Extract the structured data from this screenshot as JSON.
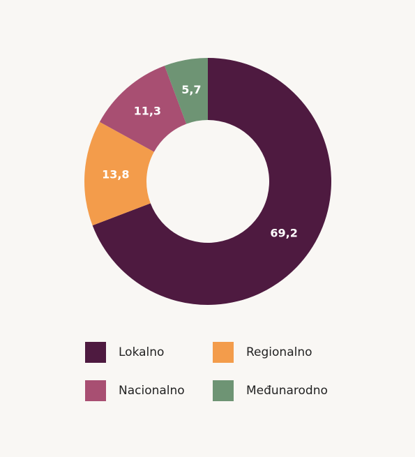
{
  "chart_data": {
    "type": "donut",
    "categories": [
      "Lokalno",
      "Regionalno",
      "Nacionalno",
      "Međunarodno"
    ],
    "values": [
      69.2,
      13.8,
      11.3,
      5.7
    ],
    "value_labels": [
      "69,2",
      "13,8",
      "11,3",
      "5,7"
    ],
    "colors": [
      "#4e1a40",
      "#f39c4b",
      "#a84f72",
      "#6e9474"
    ],
    "legend": "bottom"
  }
}
